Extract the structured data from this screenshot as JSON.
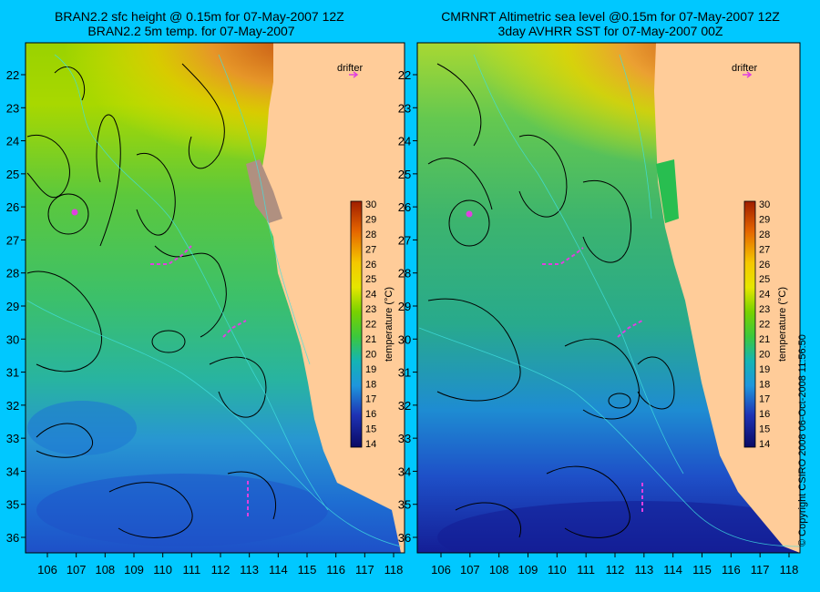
{
  "left_panel": {
    "title_line1": "BRAN2.2 sfc height @ 0.15m for 07-May-2007 12Z",
    "title_line2": "BRAN2.2 5m temp. for 07-May-2007",
    "legend_label": "drifter"
  },
  "right_panel": {
    "title_line1": "CMRNRT Altimetric sea level  @0.15m  for 07-May-2007 12Z",
    "title_line2": "3day AVHRR SST for 07-May-2007 00Z",
    "legend_label": "drifter"
  },
  "axes": {
    "x_ticks": [
      "106",
      "107",
      "108",
      "109",
      "110",
      "111",
      "112",
      "113",
      "114",
      "115",
      "116",
      "117",
      "118"
    ],
    "y_ticks": [
      "22",
      "23",
      "24",
      "25",
      "26",
      "27",
      "28",
      "29",
      "30",
      "31",
      "32",
      "33",
      "34",
      "35",
      "36"
    ]
  },
  "colorbar": {
    "label": "temperature (°C)",
    "ticks": [
      "30",
      "29",
      "28",
      "27",
      "26",
      "25",
      "24",
      "23",
      "22",
      "21",
      "20",
      "19",
      "18",
      "17",
      "16",
      "15",
      "14"
    ],
    "colors": [
      "#a01e00",
      "#c83c00",
      "#e46400",
      "#f08c1e",
      "#f5aa32",
      "#f5c800",
      "#e6e600",
      "#b4e600",
      "#78d200",
      "#3cc83c",
      "#28be78",
      "#14b4b4",
      "#1e96dc",
      "#1e64dc",
      "#1e32b4",
      "#141e8c",
      "#0a0a64"
    ]
  },
  "copyright": "© Copyright CSIRO 2008    06-Oct-2008 11:56:50",
  "colors": {
    "background": "#00c8ff",
    "land": "#ffcc99",
    "contour": "#000000",
    "isobath": "#40e0e0",
    "drifter": "#e040e0"
  }
}
